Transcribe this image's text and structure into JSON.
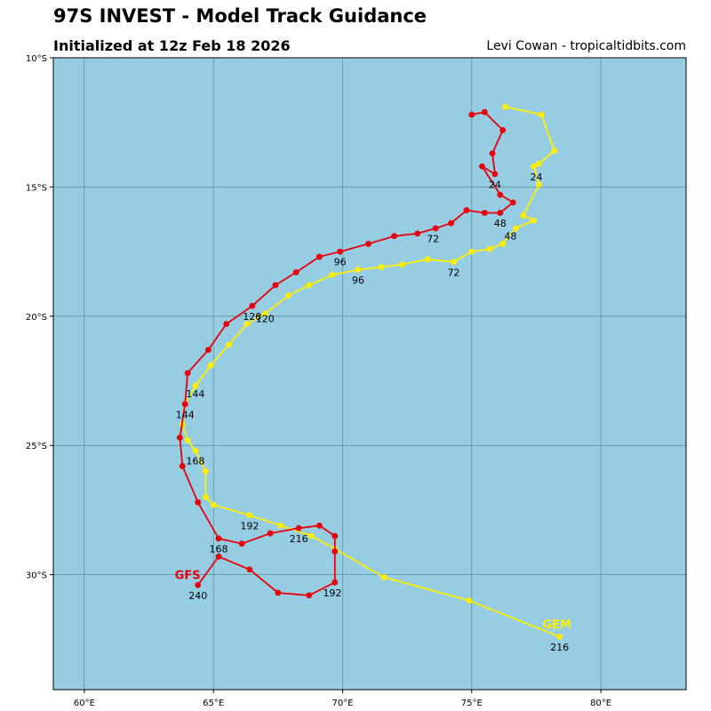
{
  "header": {
    "title": "97S INVEST - Model Track Guidance",
    "subtitle": "Initialized at 12z Feb 18 2026",
    "credit": "Levi Cowan - tropicaltidbits.com"
  },
  "colors": {
    "ocean": "#96cde2",
    "grid": "#4f7f8c",
    "gfs": "#e8000b",
    "gem": "#ffee00"
  },
  "chart_data": {
    "type": "map-track",
    "x_axis": {
      "unit": "longitude",
      "range": [
        58.8,
        83.3
      ],
      "ticks": [
        60,
        65,
        70,
        75,
        80
      ],
      "tick_labels": [
        "60°E",
        "65°E",
        "70°E",
        "75°E",
        "80°E"
      ]
    },
    "y_axis": {
      "unit": "latitude",
      "range": [
        -10,
        -34.45
      ],
      "ticks": [
        -10,
        -15,
        -20,
        -25,
        -30
      ],
      "tick_labels": [
        "10°S",
        "15°S",
        "20°S",
        "25°S",
        "30°S"
      ]
    },
    "grid": true,
    "series": [
      {
        "name": "GFS",
        "color": "#e8000b",
        "label_pos": [
          64.0,
          -30.0
        ],
        "points": [
          [
            75.0,
            -12.2
          ],
          [
            75.5,
            -12.1
          ],
          [
            76.2,
            -12.8
          ],
          [
            75.8,
            -13.7
          ],
          [
            75.9,
            -14.5
          ],
          [
            75.4,
            -14.2
          ],
          [
            76.1,
            -15.3
          ],
          [
            76.6,
            -15.6
          ],
          [
            76.1,
            -16.0
          ],
          [
            75.5,
            -16.0
          ],
          [
            74.8,
            -15.9
          ],
          [
            74.2,
            -16.4
          ],
          [
            73.6,
            -16.6
          ],
          [
            72.9,
            -16.8
          ],
          [
            72.0,
            -16.9
          ],
          [
            71.0,
            -17.2
          ],
          [
            69.9,
            -17.5
          ],
          [
            69.1,
            -17.7
          ],
          [
            68.2,
            -18.3
          ],
          [
            67.4,
            -18.8
          ],
          [
            66.5,
            -19.6
          ],
          [
            65.5,
            -20.3
          ],
          [
            64.8,
            -21.3
          ],
          [
            64.0,
            -22.2
          ],
          [
            63.9,
            -23.4
          ],
          [
            63.7,
            -24.7
          ],
          [
            63.8,
            -25.8
          ],
          [
            64.4,
            -27.2
          ],
          [
            65.2,
            -28.6
          ],
          [
            66.1,
            -28.8
          ],
          [
            67.2,
            -28.4
          ],
          [
            68.3,
            -28.2
          ],
          [
            69.1,
            -28.1
          ],
          [
            69.7,
            -28.5
          ],
          [
            69.7,
            -29.1
          ],
          [
            69.7,
            -30.3
          ],
          [
            68.7,
            -30.8
          ],
          [
            67.5,
            -30.7
          ],
          [
            66.4,
            -29.8
          ],
          [
            65.2,
            -29.3
          ],
          [
            64.4,
            -30.4
          ]
        ],
        "time_labels": [
          {
            "text": "24",
            "lon": 75.9,
            "lat": -14.9
          },
          {
            "text": "48",
            "lon": 76.1,
            "lat": -16.4
          },
          {
            "text": "72",
            "lon": 73.5,
            "lat": -17.0
          },
          {
            "text": "96",
            "lon": 69.9,
            "lat": -17.9
          },
          {
            "text": "120",
            "lon": 66.5,
            "lat": -20.0
          },
          {
            "text": "144",
            "lon": 63.9,
            "lat": -23.8
          },
          {
            "text": "168",
            "lon": 65.2,
            "lat": -29.0
          },
          {
            "text": "192",
            "lon": 69.6,
            "lat": -30.7
          },
          {
            "text": "240",
            "lon": 64.4,
            "lat": -30.8
          }
        ]
      },
      {
        "name": "GEM",
        "color": "#ffee00",
        "label_pos": [
          78.3,
          -31.9
        ],
        "points": [
          [
            76.3,
            -11.9
          ],
          [
            77.7,
            -12.2
          ],
          [
            78.2,
            -13.6
          ],
          [
            77.6,
            -14.1
          ],
          [
            77.4,
            -14.2
          ],
          [
            77.6,
            -14.9
          ],
          [
            77.0,
            -16.1
          ],
          [
            77.4,
            -16.3
          ],
          [
            76.7,
            -16.6
          ],
          [
            76.2,
            -17.2
          ],
          [
            75.7,
            -17.4
          ],
          [
            75.0,
            -17.5
          ],
          [
            74.3,
            -17.9
          ],
          [
            73.3,
            -17.8
          ],
          [
            72.3,
            -18.0
          ],
          [
            71.5,
            -18.1
          ],
          [
            70.6,
            -18.2
          ],
          [
            69.6,
            -18.4
          ],
          [
            68.7,
            -18.8
          ],
          [
            67.9,
            -19.2
          ],
          [
            67.0,
            -19.9
          ],
          [
            66.3,
            -20.3
          ],
          [
            65.6,
            -21.1
          ],
          [
            64.9,
            -21.9
          ],
          [
            64.3,
            -22.7
          ],
          [
            63.9,
            -23.4
          ],
          [
            63.8,
            -24.2
          ],
          [
            64.0,
            -24.8
          ],
          [
            64.3,
            -25.2
          ],
          [
            64.7,
            -26.0
          ],
          [
            64.7,
            -27.0
          ],
          [
            65.0,
            -27.3
          ],
          [
            66.4,
            -27.7
          ],
          [
            67.6,
            -28.1
          ],
          [
            68.8,
            -28.5
          ],
          [
            69.7,
            -29.0
          ],
          [
            71.6,
            -30.1
          ],
          [
            74.9,
            -31.0
          ],
          [
            78.4,
            -32.4
          ]
        ],
        "time_labels": [
          {
            "text": "24",
            "lon": 77.5,
            "lat": -14.6
          },
          {
            "text": "48",
            "lon": 76.5,
            "lat": -16.9
          },
          {
            "text": "72",
            "lon": 74.3,
            "lat": -18.3
          },
          {
            "text": "96",
            "lon": 70.6,
            "lat": -18.6
          },
          {
            "text": "120",
            "lon": 67.0,
            "lat": -20.1
          },
          {
            "text": "144",
            "lon": 64.3,
            "lat": -23.0
          },
          {
            "text": "168",
            "lon": 64.3,
            "lat": -25.6
          },
          {
            "text": "192",
            "lon": 66.4,
            "lat": -28.1
          },
          {
            "text": "216",
            "lon": 68.3,
            "lat": -28.6
          },
          {
            "text": "216",
            "lon": 78.4,
            "lat": -32.8
          }
        ]
      }
    ]
  }
}
